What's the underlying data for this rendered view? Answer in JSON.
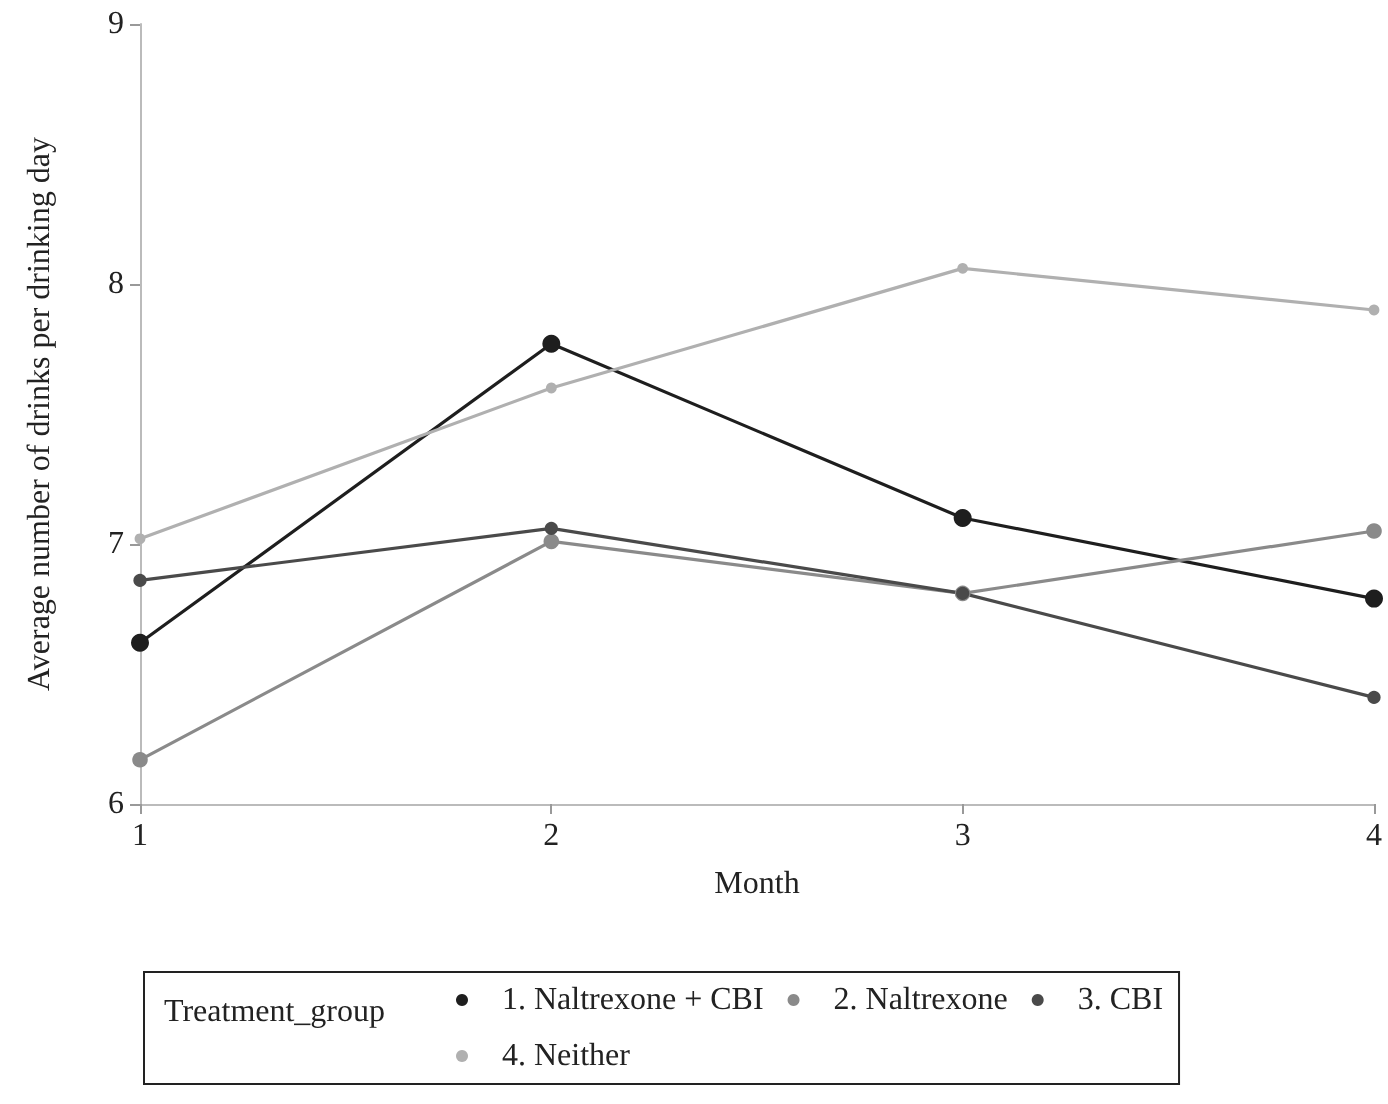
{
  "chart_data": {
    "type": "line",
    "xlabel": "Month",
    "ylabel": "Average number of drinks per drinking day",
    "legend_title": "Treatment_group",
    "x": [
      1,
      2,
      3,
      4
    ],
    "series": [
      {
        "name": "1. Naltrexone + CBI",
        "color": "#1e1e1e",
        "values": [
          6.62,
          7.77,
          7.1,
          6.79
        ]
      },
      {
        "name": "2. Naltrexone",
        "color": "#8a8a8a",
        "values": [
          6.17,
          7.01,
          6.81,
          7.05
        ]
      },
      {
        "name": "3. CBI",
        "color": "#4a4a4a",
        "values": [
          6.86,
          7.06,
          6.81,
          6.41
        ]
      },
      {
        "name": "4. Neither",
        "color": "#b0b0b0",
        "values": [
          7.02,
          7.6,
          8.06,
          7.9
        ]
      }
    ],
    "xlim": [
      1,
      4
    ],
    "xticks": [
      1,
      2,
      3,
      4
    ],
    "ylim": [
      6,
      9
    ],
    "yticks": [
      6,
      7,
      8,
      9
    ],
    "grid": false,
    "legend": "bottom",
    "marker": "circle",
    "line_style": "solid"
  }
}
